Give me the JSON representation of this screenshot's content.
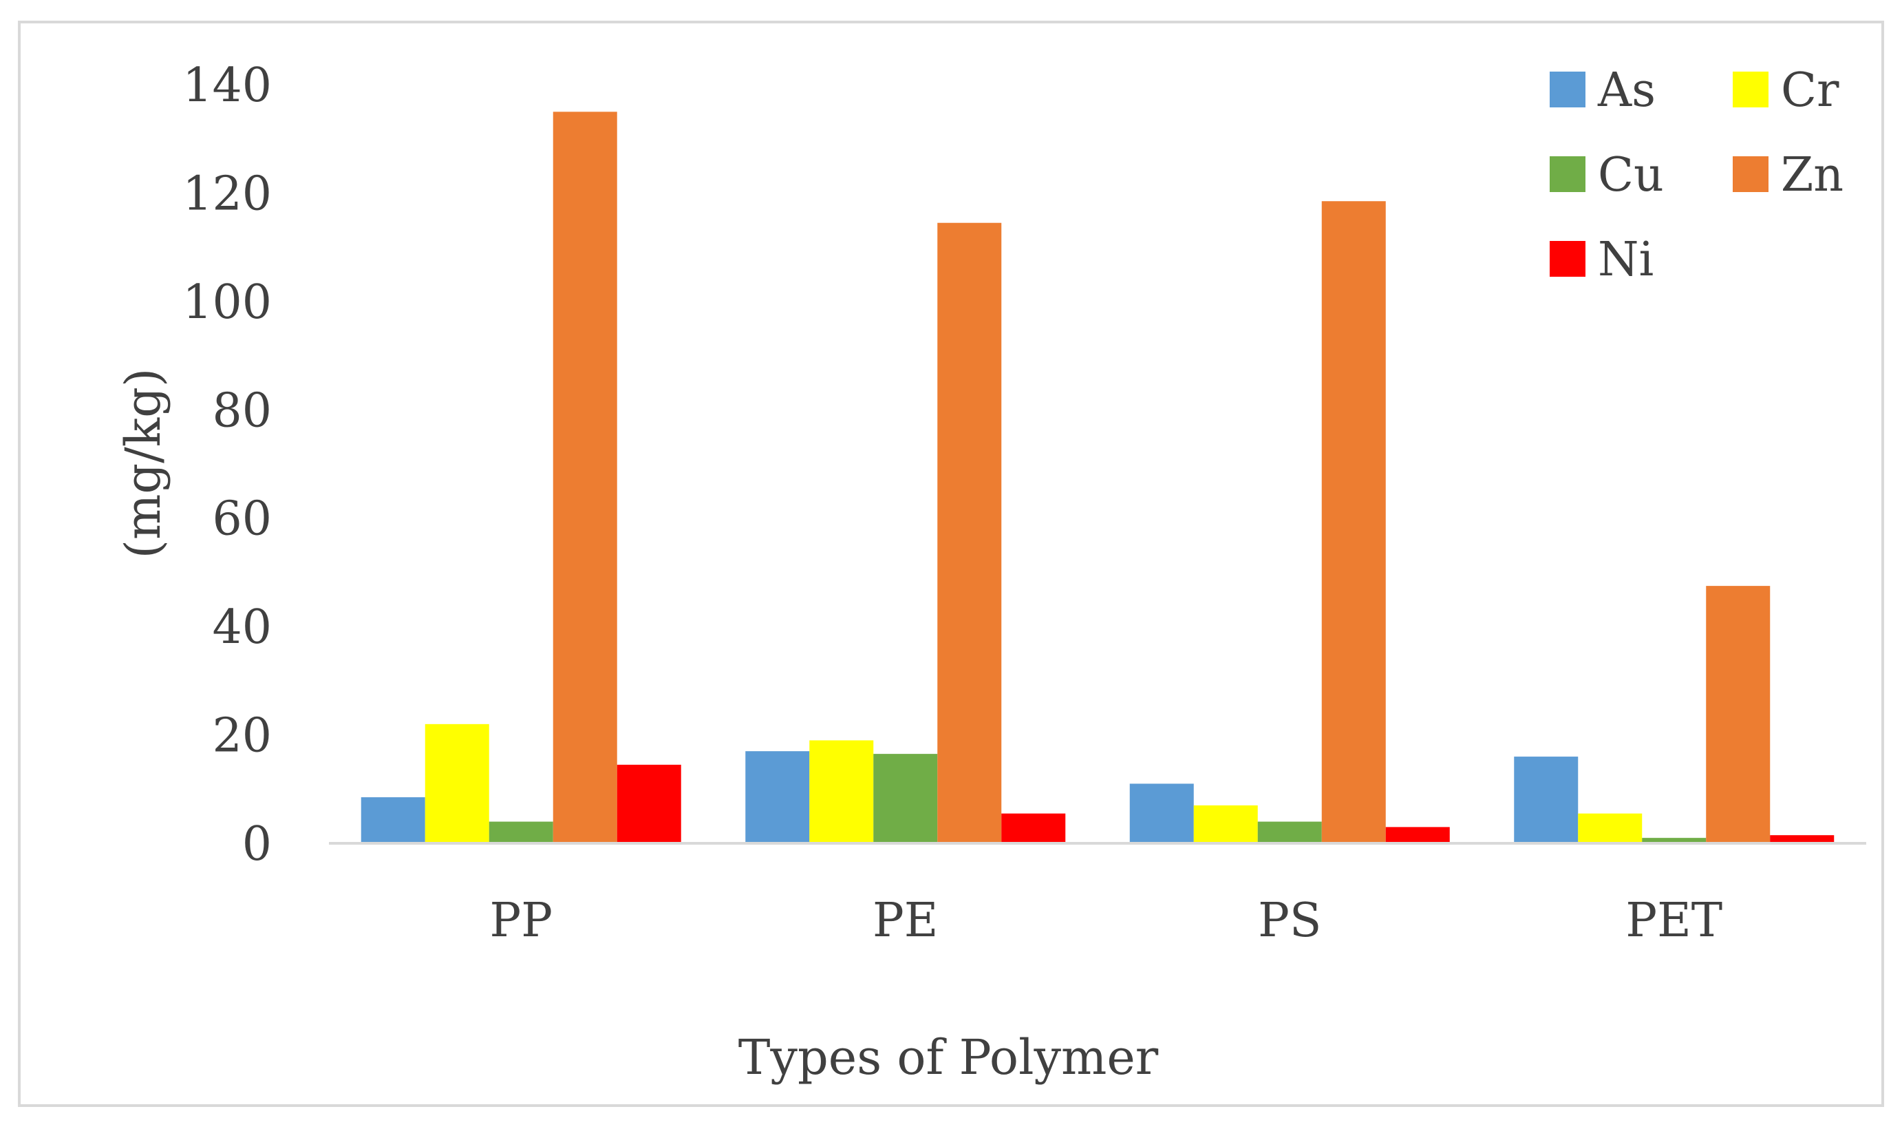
{
  "chart_data": {
    "type": "bar",
    "categories": [
      "PP",
      "PE",
      "PS",
      "PET"
    ],
    "series": [
      {
        "name": "As",
        "color": "#5b9bd5",
        "values": [
          8.5,
          17,
          11,
          16
        ]
      },
      {
        "name": "Cr",
        "color": "#ffff00",
        "values": [
          22,
          19,
          7,
          5.5
        ]
      },
      {
        "name": "Cu",
        "color": "#70ad47",
        "values": [
          4,
          16.5,
          4,
          1
        ]
      },
      {
        "name": "Zn",
        "color": "#ed7d31",
        "values": [
          135,
          114.5,
          118.5,
          47.5
        ]
      },
      {
        "name": "Ni",
        "color": "#ff0000",
        "values": [
          14.5,
          5.5,
          3,
          1.5
        ]
      }
    ],
    "title": "",
    "xlabel": "Types of Polymer",
    "ylabel": "(mg/kg)",
    "ylim": [
      0,
      140
    ],
    "yticks": [
      "0",
      "20",
      "40",
      "60",
      "80",
      "100",
      "120",
      "140"
    ],
    "grid": false,
    "legend": "top-right"
  }
}
